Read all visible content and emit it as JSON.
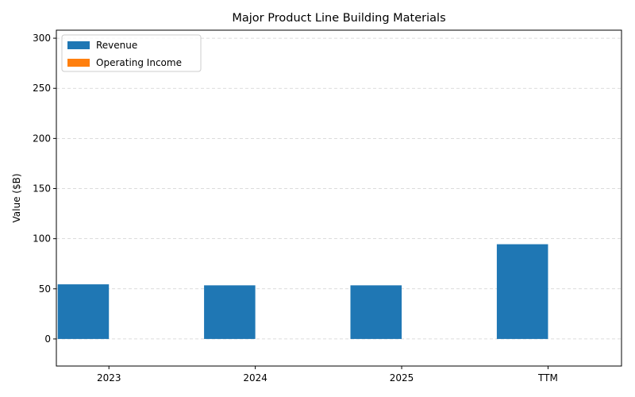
{
  "chart_data": {
    "type": "bar",
    "title": "Major Product Line Building Materials",
    "xlabel": "",
    "ylabel": "Value ($B)",
    "categories": [
      "2023",
      "2024",
      "2025",
      "TTM"
    ],
    "series": [
      {
        "name": "Revenue",
        "color": "#1f77b4",
        "values": [
          54.5,
          53.5,
          53.5,
          94.5
        ]
      },
      {
        "name": "Operating Income",
        "color": "#ff7f0e",
        "values": [
          0,
          0,
          0,
          0
        ]
      }
    ],
    "ylim": [
      -27,
      308
    ],
    "yticks": [
      0,
      50,
      100,
      150,
      200,
      250,
      300
    ],
    "grid": true,
    "legend_position": "top-left"
  }
}
